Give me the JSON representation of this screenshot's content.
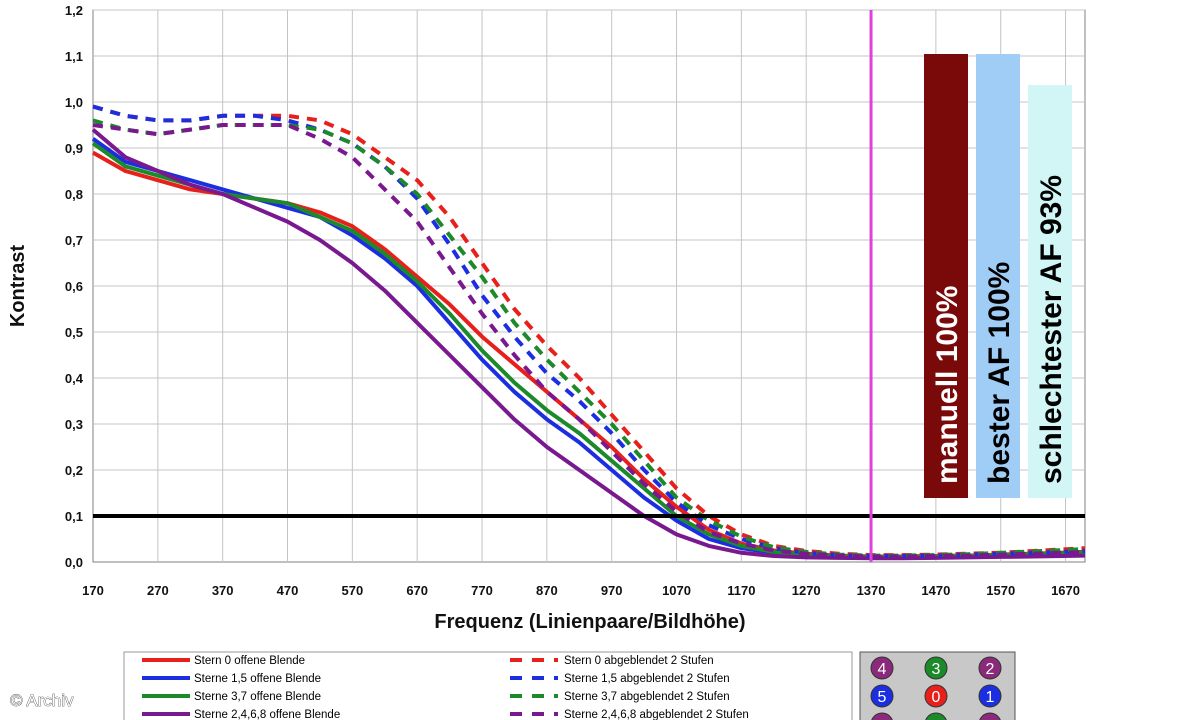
{
  "chart_data": {
    "type": "line",
    "title": "",
    "xlabel": "Frequenz (Linienpaare/Bildhöhe)",
    "ylabel": "Kontrast",
    "xlim": [
      170,
      1700
    ],
    "ylim": [
      0,
      1.2
    ],
    "x_ticks": [
      "170",
      "270",
      "370",
      "470",
      "570",
      "670",
      "770",
      "870",
      "970",
      "1070",
      "1170",
      "1270",
      "1370",
      "1470",
      "1570",
      "1670"
    ],
    "y_ticks": [
      "0,0",
      "0,1",
      "0,2",
      "0,3",
      "0,4",
      "0,5",
      "0,6",
      "0,7",
      "0,8",
      "0,9",
      "1,0",
      "1,1",
      "1,2"
    ],
    "grid": true,
    "legend_position": "bottom",
    "threshold": {
      "y": 0.1,
      "color": "#000000"
    },
    "marker_line": {
      "x": 1370,
      "color": "#e040e0"
    },
    "x": [
      170,
      220,
      270,
      320,
      370,
      420,
      470,
      520,
      570,
      620,
      670,
      720,
      770,
      820,
      870,
      920,
      970,
      1020,
      1070,
      1120,
      1170,
      1220,
      1270,
      1320,
      1370,
      1420,
      1470,
      1520,
      1570,
      1620,
      1700
    ],
    "series": [
      {
        "name": "Stern 0 offene Blende",
        "color": "#e8201c",
        "dash": false,
        "values": [
          0.89,
          0.85,
          0.83,
          0.81,
          0.8,
          0.79,
          0.78,
          0.76,
          0.73,
          0.68,
          0.62,
          0.56,
          0.49,
          0.43,
          0.37,
          0.31,
          0.25,
          0.18,
          0.12,
          0.07,
          0.04,
          0.025,
          0.018,
          0.014,
          0.012,
          0.012,
          0.013,
          0.014,
          0.016,
          0.018,
          0.022
        ]
      },
      {
        "name": "Sterne 1,5 offene Blende",
        "color": "#1c2fe0",
        "dash": false,
        "values": [
          0.92,
          0.87,
          0.85,
          0.83,
          0.81,
          0.79,
          0.77,
          0.75,
          0.71,
          0.66,
          0.6,
          0.52,
          0.44,
          0.37,
          0.31,
          0.26,
          0.2,
          0.14,
          0.09,
          0.05,
          0.03,
          0.02,
          0.015,
          0.012,
          0.01,
          0.01,
          0.011,
          0.012,
          0.013,
          0.014,
          0.016
        ]
      },
      {
        "name": "Sterne 3,7 offene Blende",
        "color": "#1c8a2a",
        "dash": false,
        "values": [
          0.91,
          0.86,
          0.84,
          0.82,
          0.8,
          0.79,
          0.78,
          0.75,
          0.72,
          0.67,
          0.61,
          0.54,
          0.46,
          0.39,
          0.33,
          0.28,
          0.22,
          0.16,
          0.1,
          0.06,
          0.035,
          0.022,
          0.016,
          0.013,
          0.012,
          0.012,
          0.013,
          0.014,
          0.016,
          0.018,
          0.021
        ]
      },
      {
        "name": "Sterne 2,4,6,8 offene Blende",
        "color": "#7a1890",
        "dash": false,
        "values": [
          0.94,
          0.88,
          0.85,
          0.82,
          0.8,
          0.77,
          0.74,
          0.7,
          0.65,
          0.59,
          0.52,
          0.45,
          0.38,
          0.31,
          0.25,
          0.2,
          0.15,
          0.1,
          0.06,
          0.035,
          0.02,
          0.013,
          0.01,
          0.009,
          0.008,
          0.008,
          0.009,
          0.01,
          0.011,
          0.012,
          0.014
        ]
      },
      {
        "name": "Stern 0 abgeblendet 2 Stufen",
        "color": "#e8201c",
        "dash": true,
        "values": [
          0.99,
          0.97,
          0.96,
          0.96,
          0.97,
          0.97,
          0.97,
          0.96,
          0.93,
          0.88,
          0.83,
          0.75,
          0.65,
          0.55,
          0.47,
          0.4,
          0.32,
          0.24,
          0.16,
          0.1,
          0.06,
          0.035,
          0.024,
          0.018,
          0.015,
          0.015,
          0.016,
          0.018,
          0.02,
          0.024,
          0.03
        ]
      },
      {
        "name": "Sterne 1,5 abgeblendet 2 Stufen",
        "color": "#1c2fe0",
        "dash": true,
        "values": [
          0.99,
          0.97,
          0.96,
          0.96,
          0.97,
          0.97,
          0.96,
          0.94,
          0.91,
          0.86,
          0.79,
          0.69,
          0.58,
          0.49,
          0.41,
          0.35,
          0.28,
          0.2,
          0.13,
          0.08,
          0.05,
          0.03,
          0.02,
          0.015,
          0.013,
          0.013,
          0.014,
          0.016,
          0.018,
          0.02,
          0.024
        ]
      },
      {
        "name": "Sterne 3,7 abgeblendet 2 Stufen",
        "color": "#1c8a2a",
        "dash": true,
        "values": [
          0.96,
          0.94,
          0.93,
          0.94,
          0.95,
          0.95,
          0.95,
          0.94,
          0.91,
          0.86,
          0.8,
          0.71,
          0.62,
          0.52,
          0.44,
          0.37,
          0.3,
          0.22,
          0.14,
          0.09,
          0.055,
          0.032,
          0.022,
          0.016,
          0.014,
          0.014,
          0.015,
          0.017,
          0.02,
          0.023,
          0.028
        ]
      },
      {
        "name": "Sterne 2,4,6,8 abgeblendet 2 Stufen",
        "color": "#7a1890",
        "dash": true,
        "values": [
          0.95,
          0.94,
          0.93,
          0.94,
          0.95,
          0.95,
          0.95,
          0.92,
          0.88,
          0.81,
          0.74,
          0.64,
          0.54,
          0.45,
          0.37,
          0.31,
          0.24,
          0.17,
          0.11,
          0.065,
          0.04,
          0.025,
          0.018,
          0.014,
          0.012,
          0.012,
          0.013,
          0.014,
          0.016,
          0.018,
          0.022
        ]
      }
    ],
    "bars": [
      {
        "label": "manuell 100%",
        "value": 100,
        "color": "#7a0a0a",
        "text_color": "#ffffff"
      },
      {
        "label": "bester AF 100%",
        "value": 100,
        "color": "#9fcdf5",
        "text_color": "#000000"
      },
      {
        "label": "schlechtester AF 93%",
        "value": 93,
        "color": "#d2f5f5",
        "text_color": "#000000"
      }
    ],
    "badges": [
      {
        "label": "4",
        "color": "#8b2a7a"
      },
      {
        "label": "3",
        "color": "#1c8a2a"
      },
      {
        "label": "2",
        "color": "#8b2a7a"
      },
      {
        "label": "5",
        "color": "#1c2fe0"
      },
      {
        "label": "0",
        "color": "#e8201c"
      },
      {
        "label": "1",
        "color": "#1c2fe0"
      },
      {
        "label": "",
        "color": "#8b2a7a"
      },
      {
        "label": "",
        "color": "#1c8a2a"
      },
      {
        "label": "",
        "color": "#8b2a7a"
      }
    ]
  },
  "credit": "© Archiv"
}
